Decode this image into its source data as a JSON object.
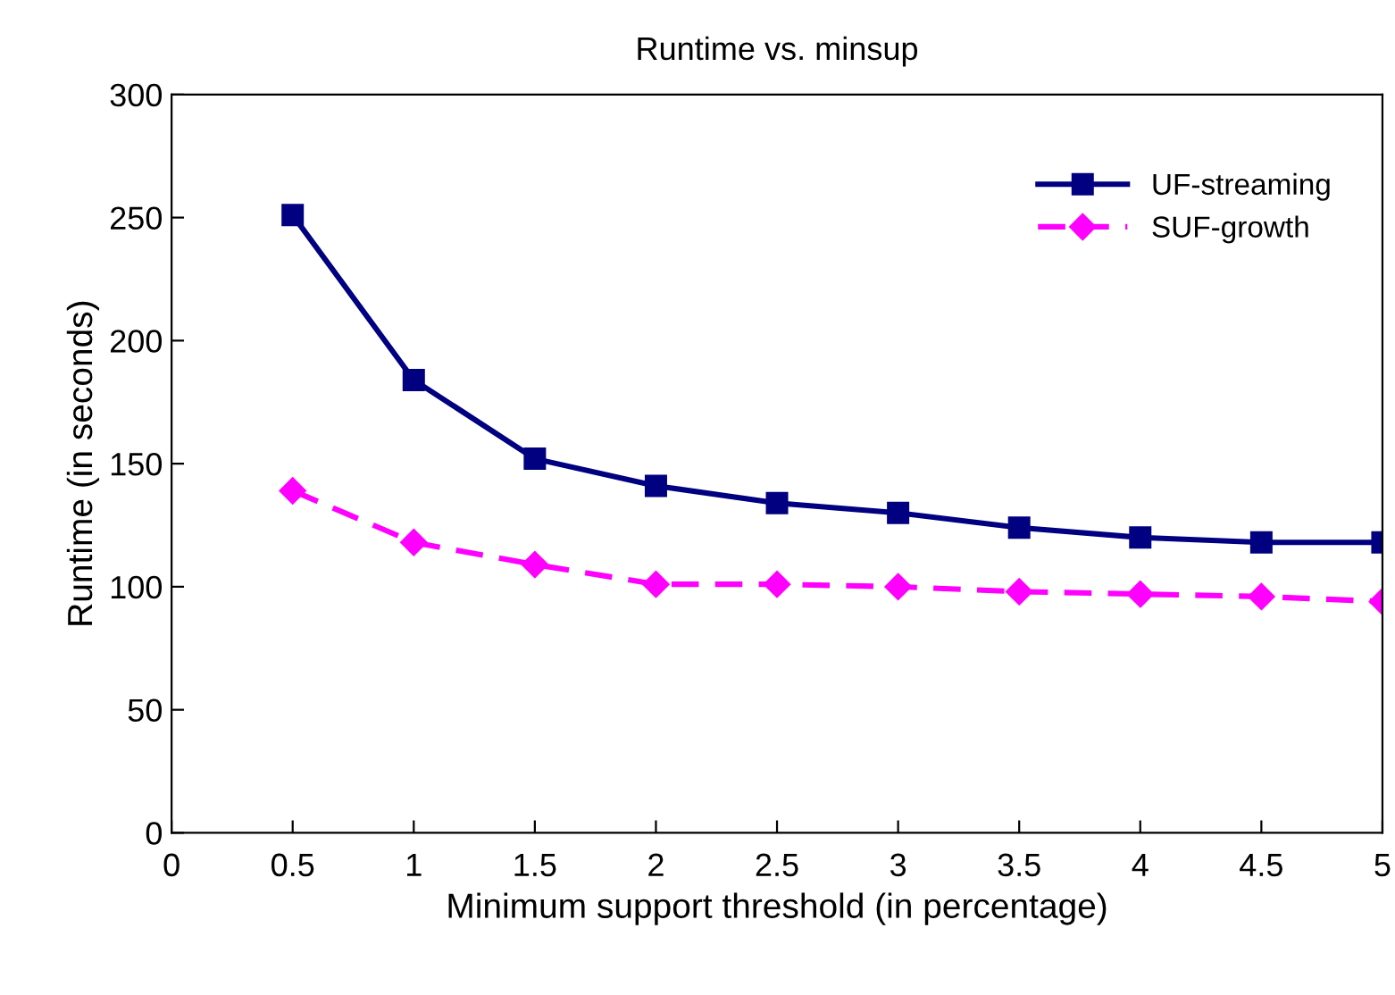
{
  "chart_data": {
    "type": "line",
    "title": "Runtime vs. minsup",
    "xlabel": "Minimum support threshold (in percentage)",
    "ylabel": "Runtime (in seconds)",
    "x": [
      0.5,
      1,
      1.5,
      2,
      2.5,
      3,
      3.5,
      4,
      4.5,
      5
    ],
    "series": [
      {
        "name": "UF-streaming",
        "color": "#000080",
        "marker": "square",
        "line_style": "solid",
        "values": [
          251,
          184,
          152,
          141,
          134,
          130,
          124,
          120,
          118,
          118
        ]
      },
      {
        "name": "SUF-growth",
        "color": "#ff00ff",
        "marker": "diamond",
        "line_style": "dashed",
        "values": [
          139,
          118,
          109,
          101,
          101,
          100,
          98,
          97,
          96,
          94
        ]
      }
    ],
    "xlim": [
      0,
      5
    ],
    "xticks": [
      0,
      0.5,
      1,
      1.5,
      2,
      2.5,
      3,
      3.5,
      4,
      4.5,
      5
    ],
    "ylim": [
      0,
      300
    ],
    "yticks": [
      0,
      50,
      100,
      150,
      200,
      250,
      300
    ],
    "grid": false,
    "legend": "top right"
  }
}
